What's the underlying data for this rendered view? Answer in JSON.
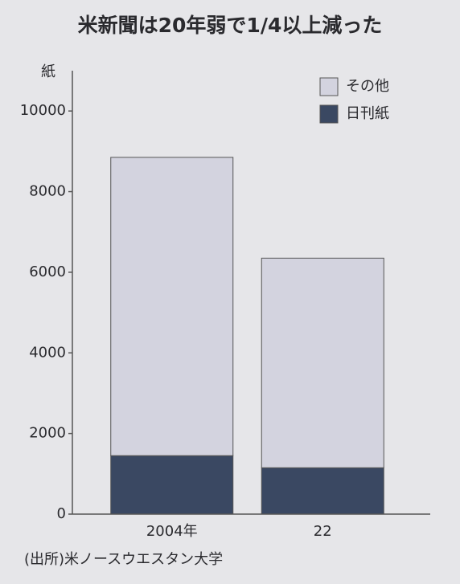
{
  "chart_data": {
    "type": "bar",
    "stacked": true,
    "title": "米新聞は20年弱で1/4以上減った",
    "y_label": "紙",
    "source": "(出所)米ノースウエスタン大学",
    "categories": [
      "2004年",
      "22"
    ],
    "series": [
      {
        "name": "日刊紙",
        "color": "#3a4862",
        "values": [
          1450,
          1150
        ]
      },
      {
        "name": "その他",
        "color": "#d3d3df",
        "values": [
          7400,
          5200
        ]
      }
    ],
    "ylim": [
      0,
      11000
    ],
    "yticks": [
      0,
      2000,
      4000,
      6000,
      8000,
      10000
    ],
    "legend": "upper-right"
  }
}
